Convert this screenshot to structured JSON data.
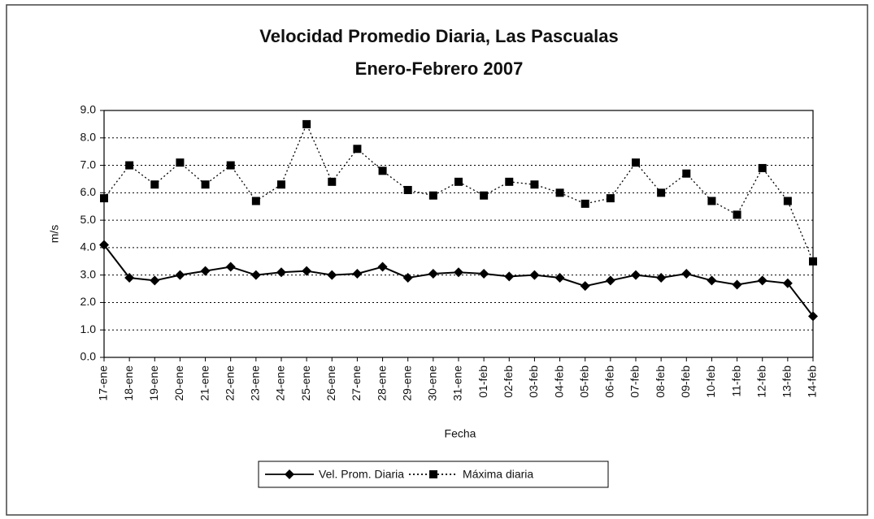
{
  "chart_data": {
    "type": "line",
    "title": "Velocidad Promedio Diaria, Las Pascualas",
    "subtitle": "Enero-Febrero 2007",
    "x_label": "Fecha",
    "y_label": "m/s",
    "categories": [
      "17-ene",
      "18-ene",
      "19-ene",
      "20-ene",
      "21-ene",
      "22-ene",
      "23-ene",
      "24-ene",
      "25-ene",
      "26-ene",
      "27-ene",
      "28-ene",
      "29-ene",
      "30-ene",
      "31-ene",
      "01-feb",
      "02-feb",
      "03-feb",
      "04-feb",
      "05-feb",
      "06-feb",
      "07-feb",
      "08-feb",
      "09-feb",
      "10-feb",
      "11-feb",
      "12-feb",
      "13-feb",
      "14-feb"
    ],
    "series": [
      {
        "name": "Vel. Prom. Diaria",
        "color": "#000000",
        "line_style": "solid",
        "marker": "diamond",
        "values": [
          4.1,
          2.9,
          2.8,
          3.0,
          3.15,
          3.3,
          3.0,
          3.1,
          3.15,
          3.0,
          3.05,
          3.3,
          2.9,
          3.05,
          3.1,
          3.05,
          2.95,
          3.0,
          2.9,
          2.6,
          2.8,
          3.0,
          2.9,
          3.05,
          2.8,
          2.65,
          2.8,
          2.7,
          1.5
        ]
      },
      {
        "name": "Máxima diaria",
        "color": "#000000",
        "line_style": "dotted",
        "marker": "square",
        "values": [
          5.8,
          7.0,
          6.3,
          7.1,
          6.3,
          7.0,
          5.7,
          6.3,
          8.5,
          6.4,
          7.6,
          6.8,
          6.1,
          5.9,
          6.4,
          5.9,
          6.4,
          6.3,
          6.0,
          5.6,
          5.8,
          7.1,
          6.0,
          6.7,
          5.7,
          5.2,
          6.9,
          5.7,
          3.5
        ]
      }
    ],
    "ylim": [
      0,
      9
    ],
    "yticks": [
      {
        "value": 0,
        "label": "0.0"
      },
      {
        "value": 1,
        "label": "1.0"
      },
      {
        "value": 2,
        "label": "2.0"
      },
      {
        "value": 3,
        "label": "3.0"
      },
      {
        "value": 4,
        "label": "4.0"
      },
      {
        "value": 5,
        "label": "5.0"
      },
      {
        "value": 6,
        "label": "6.0"
      },
      {
        "value": 7,
        "label": "7.0"
      },
      {
        "value": 8,
        "label": "8.0"
      },
      {
        "value": 9,
        "label": "9.0"
      }
    ],
    "grid": true,
    "legend": "bottom"
  }
}
